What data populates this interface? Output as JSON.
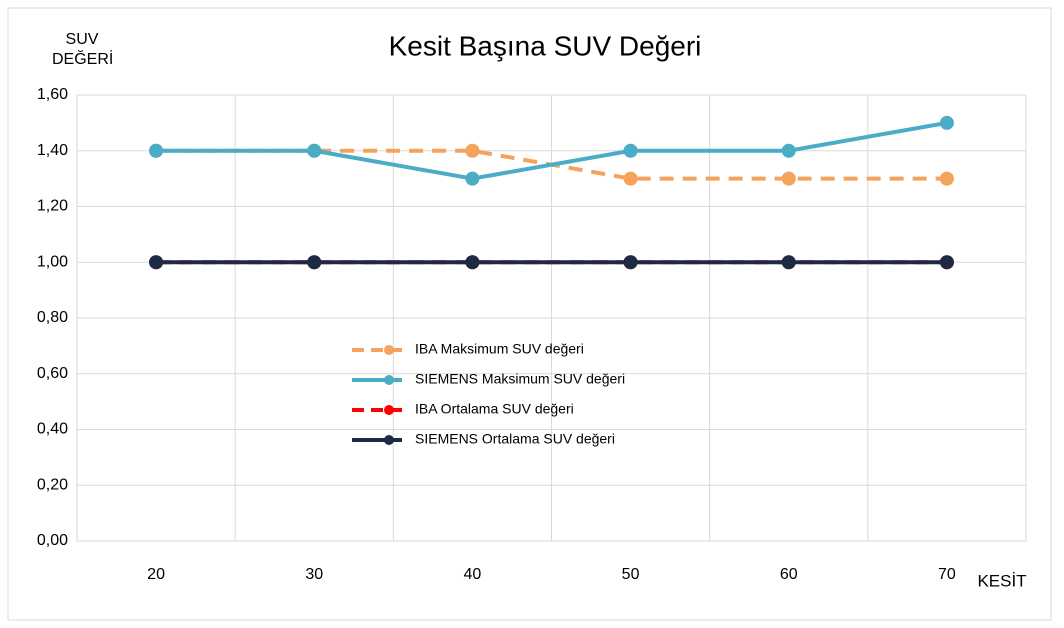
{
  "chart_data": {
    "type": "line",
    "title": "Kesit Başına SUV Değeri",
    "x_label": "KESİT",
    "y_label": "SUV DEĞERİ",
    "categories": [
      "20",
      "30",
      "40",
      "50",
      "60",
      "70"
    ],
    "series": [
      {
        "name": "IBA Maksimum SUV değeri",
        "color": "#f4a25c",
        "dashed": true,
        "values": [
          1.4,
          1.4,
          1.4,
          1.3,
          1.3,
          1.3
        ]
      },
      {
        "name": "SIEMENS Maksimum SUV değeri",
        "color": "#4bacc6",
        "dashed": false,
        "values": [
          1.4,
          1.4,
          1.3,
          1.4,
          1.4,
          1.5
        ]
      },
      {
        "name": "IBA Ortalama SUV değeri",
        "color": "#ff0000",
        "dashed": true,
        "values": [
          1.0,
          1.0,
          1.0,
          1.0,
          1.0,
          1.0
        ]
      },
      {
        "name": "SIEMENS Ortalama SUV değeri",
        "color": "#1c2a45",
        "dashed": false,
        "values": [
          1.0,
          1.0,
          1.0,
          1.0,
          1.0,
          1.0
        ]
      }
    ],
    "ylim": [
      0,
      1.6
    ],
    "yticks": [
      {
        "value": 0,
        "label": "0,00"
      },
      {
        "value": 0.2,
        "label": "0,20"
      },
      {
        "value": 0.4,
        "label": "0,40"
      },
      {
        "value": 0.6,
        "label": "0,60"
      },
      {
        "value": 0.8,
        "label": "0,80"
      },
      {
        "value": 1.0,
        "label": "1,00"
      },
      {
        "value": 1.2,
        "label": "1,20"
      },
      {
        "value": 1.4,
        "label": "1,40"
      },
      {
        "value": 1.6,
        "label": "1,60"
      }
    ],
    "grid": true,
    "legend": "center"
  }
}
